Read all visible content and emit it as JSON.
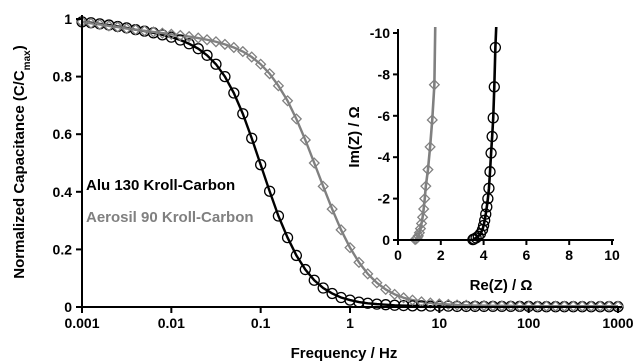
{
  "chart_data": [
    {
      "type": "line",
      "xlabel": "Frequency / Hz",
      "ylabel_main": "Normalized Capacitance (C/C",
      "ylabel_sub": "max",
      "ylabel_end": ")",
      "xscale": "log",
      "xlim": [
        0.001,
        1000
      ],
      "ylim": [
        0,
        1
      ],
      "x_ticks": [
        0.001,
        0.01,
        0.1,
        1,
        10,
        100,
        1000
      ],
      "x_tick_labels": [
        "0.001",
        "0.01",
        "0.1",
        "1",
        "10",
        "100",
        "1000"
      ],
      "y_ticks": [
        0,
        0.2,
        0.4,
        0.6,
        0.8,
        1
      ],
      "y_tick_labels": [
        "0",
        "0.2",
        "0.4",
        "0.6",
        "0.8",
        "1"
      ],
      "grid": false,
      "legend_position": "center-left",
      "series": [
        {
          "name": "Alu 130 Kroll-Carbon",
          "color": "#000000",
          "marker": "circle",
          "x": [
            0.001,
            0.00126,
            0.00158,
            0.002,
            0.00251,
            0.00316,
            0.00398,
            0.00501,
            0.00631,
            0.00794,
            0.01,
            0.0126,
            0.0158,
            0.02,
            0.0251,
            0.0316,
            0.0398,
            0.0501,
            0.0631,
            0.0794,
            0.1,
            0.126,
            0.158,
            0.2,
            0.251,
            0.316,
            0.398,
            0.501,
            0.631,
            0.794,
            1,
            1.26,
            1.58,
            2,
            2.51,
            3.16,
            3.98,
            5.01,
            6.31,
            7.94,
            10,
            12.6,
            15.8,
            20,
            25.1,
            31.6,
            39.8,
            50.1,
            63.1,
            79.4,
            100,
            126,
            158,
            200,
            251,
            316,
            398,
            501,
            631,
            794,
            1000
          ],
          "y": [
            0.99,
            0.987,
            0.983,
            0.979,
            0.974,
            0.969,
            0.963,
            0.958,
            0.952,
            0.945,
            0.937,
            0.927,
            0.914,
            0.897,
            0.874,
            0.843,
            0.8,
            0.743,
            0.671,
            0.586,
            0.494,
            0.402,
            0.316,
            0.241,
            0.179,
            0.13,
            0.093,
            0.066,
            0.047,
            0.033,
            0.024,
            0.017,
            0.013,
            0.01,
            0.008,
            0.006,
            0.005,
            0.004,
            0.004,
            0.003,
            0.003,
            0.003,
            0.002,
            0.002,
            0.002,
            0.002,
            0.002,
            0.002,
            0.002,
            0.002,
            0.002,
            0.001,
            0.001,
            0.001,
            0.001,
            0.001,
            0.001,
            0.001,
            0.001,
            0.001,
            0.001
          ]
        },
        {
          "name": "Aerosil 90 Kroll-Carbon",
          "color": "#808080",
          "marker": "diamond",
          "x": [
            0.001,
            0.00126,
            0.00158,
            0.002,
            0.00251,
            0.00316,
            0.00398,
            0.00501,
            0.00631,
            0.00794,
            0.01,
            0.0126,
            0.0158,
            0.02,
            0.0251,
            0.0316,
            0.0398,
            0.0501,
            0.0631,
            0.0794,
            0.1,
            0.126,
            0.158,
            0.2,
            0.251,
            0.316,
            0.398,
            0.501,
            0.631,
            0.794,
            1,
            1.26,
            1.58,
            2,
            2.51,
            3.16,
            3.98,
            5.01,
            6.31,
            7.94,
            10,
            12.6,
            15.8,
            20,
            25.1,
            31.6,
            39.8,
            50.1,
            63.1,
            79.4,
            100,
            126,
            158,
            200,
            251,
            316,
            398,
            501,
            631,
            794,
            1000
          ],
          "y": [
            0.99,
            0.985,
            0.981,
            0.976,
            0.972,
            0.967,
            0.963,
            0.959,
            0.955,
            0.951,
            0.947,
            0.943,
            0.939,
            0.934,
            0.928,
            0.921,
            0.912,
            0.901,
            0.887,
            0.868,
            0.843,
            0.81,
            0.768,
            0.716,
            0.653,
            0.58,
            0.5,
            0.419,
            0.34,
            0.268,
            0.206,
            0.155,
            0.115,
            0.084,
            0.061,
            0.044,
            0.032,
            0.024,
            0.018,
            0.014,
            0.011,
            0.009,
            0.007,
            0.006,
            0.005,
            0.005,
            0.004,
            0.004,
            0.004,
            0.003,
            0.003,
            0.003,
            0.003,
            0.003,
            0.003,
            0.003,
            0.003,
            0.003,
            0.003,
            0.003,
            0.003
          ]
        }
      ]
    },
    {
      "type": "scatter",
      "xlabel": "Re(Z) / Ω",
      "ylabel": "Im(Z) / Ω",
      "xlim": [
        0,
        10
      ],
      "ylim": [
        0,
        -10
      ],
      "x_ticks": [
        0,
        2,
        4,
        6,
        8,
        10
      ],
      "x_tick_labels": [
        "0",
        "2",
        "4",
        "6",
        "8",
        "10"
      ],
      "y_ticks": [
        0,
        -2,
        -4,
        -6,
        -8,
        -10
      ],
      "y_tick_labels": [
        "0",
        "-2",
        "-4",
        "-6",
        "-8",
        "-10"
      ],
      "grid": false,
      "series": [
        {
          "name": "Alu 130 Kroll-Carbon",
          "color": "#000000",
          "marker": "circle",
          "x": [
            3.5,
            3.55,
            3.65,
            3.75,
            3.85,
            3.95,
            4.0,
            4.05,
            4.1,
            4.15,
            4.2,
            4.25,
            4.3,
            4.35,
            4.4,
            4.45,
            4.5,
            4.55
          ],
          "y": [
            -0.02,
            -0.05,
            -0.1,
            -0.18,
            -0.3,
            -0.5,
            -0.7,
            -0.95,
            -1.25,
            -1.6,
            -2.0,
            -2.5,
            -3.3,
            -4.2,
            -5.0,
            -5.9,
            -7.4,
            -9.3
          ]
        },
        {
          "name": "Aerosil 90 Kroll-Carbon",
          "color": "#808080",
          "marker": "diamond",
          "x": [
            0.8,
            0.85,
            0.9,
            0.95,
            1.0,
            1.05,
            1.1,
            1.15,
            1.2,
            1.25,
            1.3,
            1.4,
            1.5,
            1.6,
            1.7
          ],
          "y": [
            -0.02,
            -0.05,
            -0.1,
            -0.2,
            -0.35,
            -0.55,
            -0.8,
            -1.1,
            -1.5,
            -2.0,
            -2.6,
            -3.4,
            -4.5,
            -5.8,
            -7.5
          ]
        }
      ]
    }
  ]
}
